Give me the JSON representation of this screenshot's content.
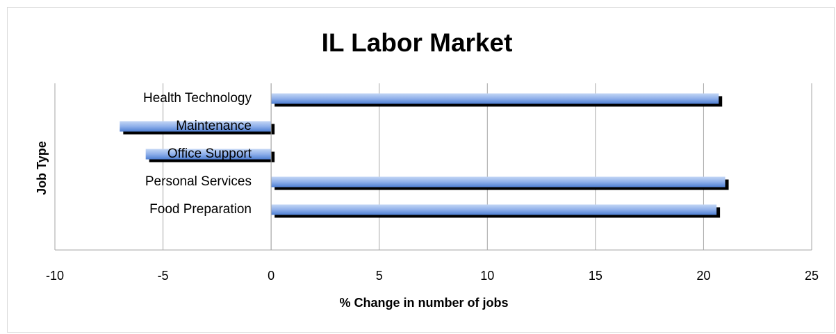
{
  "chart_data": {
    "type": "bar",
    "orientation": "horizontal",
    "title": "IL Labor Market",
    "x_label": "% Change in number of jobs",
    "y_label": "Job Type",
    "categories": [
      "Health Technology",
      "Maintenance",
      "Office Support",
      "Personal Services",
      "Food Preparation"
    ],
    "values": [
      20.7,
      -7.0,
      -5.8,
      21.0,
      20.6
    ],
    "color": "#5b8ede",
    "xlim": [
      -10,
      25
    ],
    "xticks": [
      -10,
      -5,
      0,
      5,
      10,
      15,
      20,
      25
    ],
    "grid": true
  }
}
